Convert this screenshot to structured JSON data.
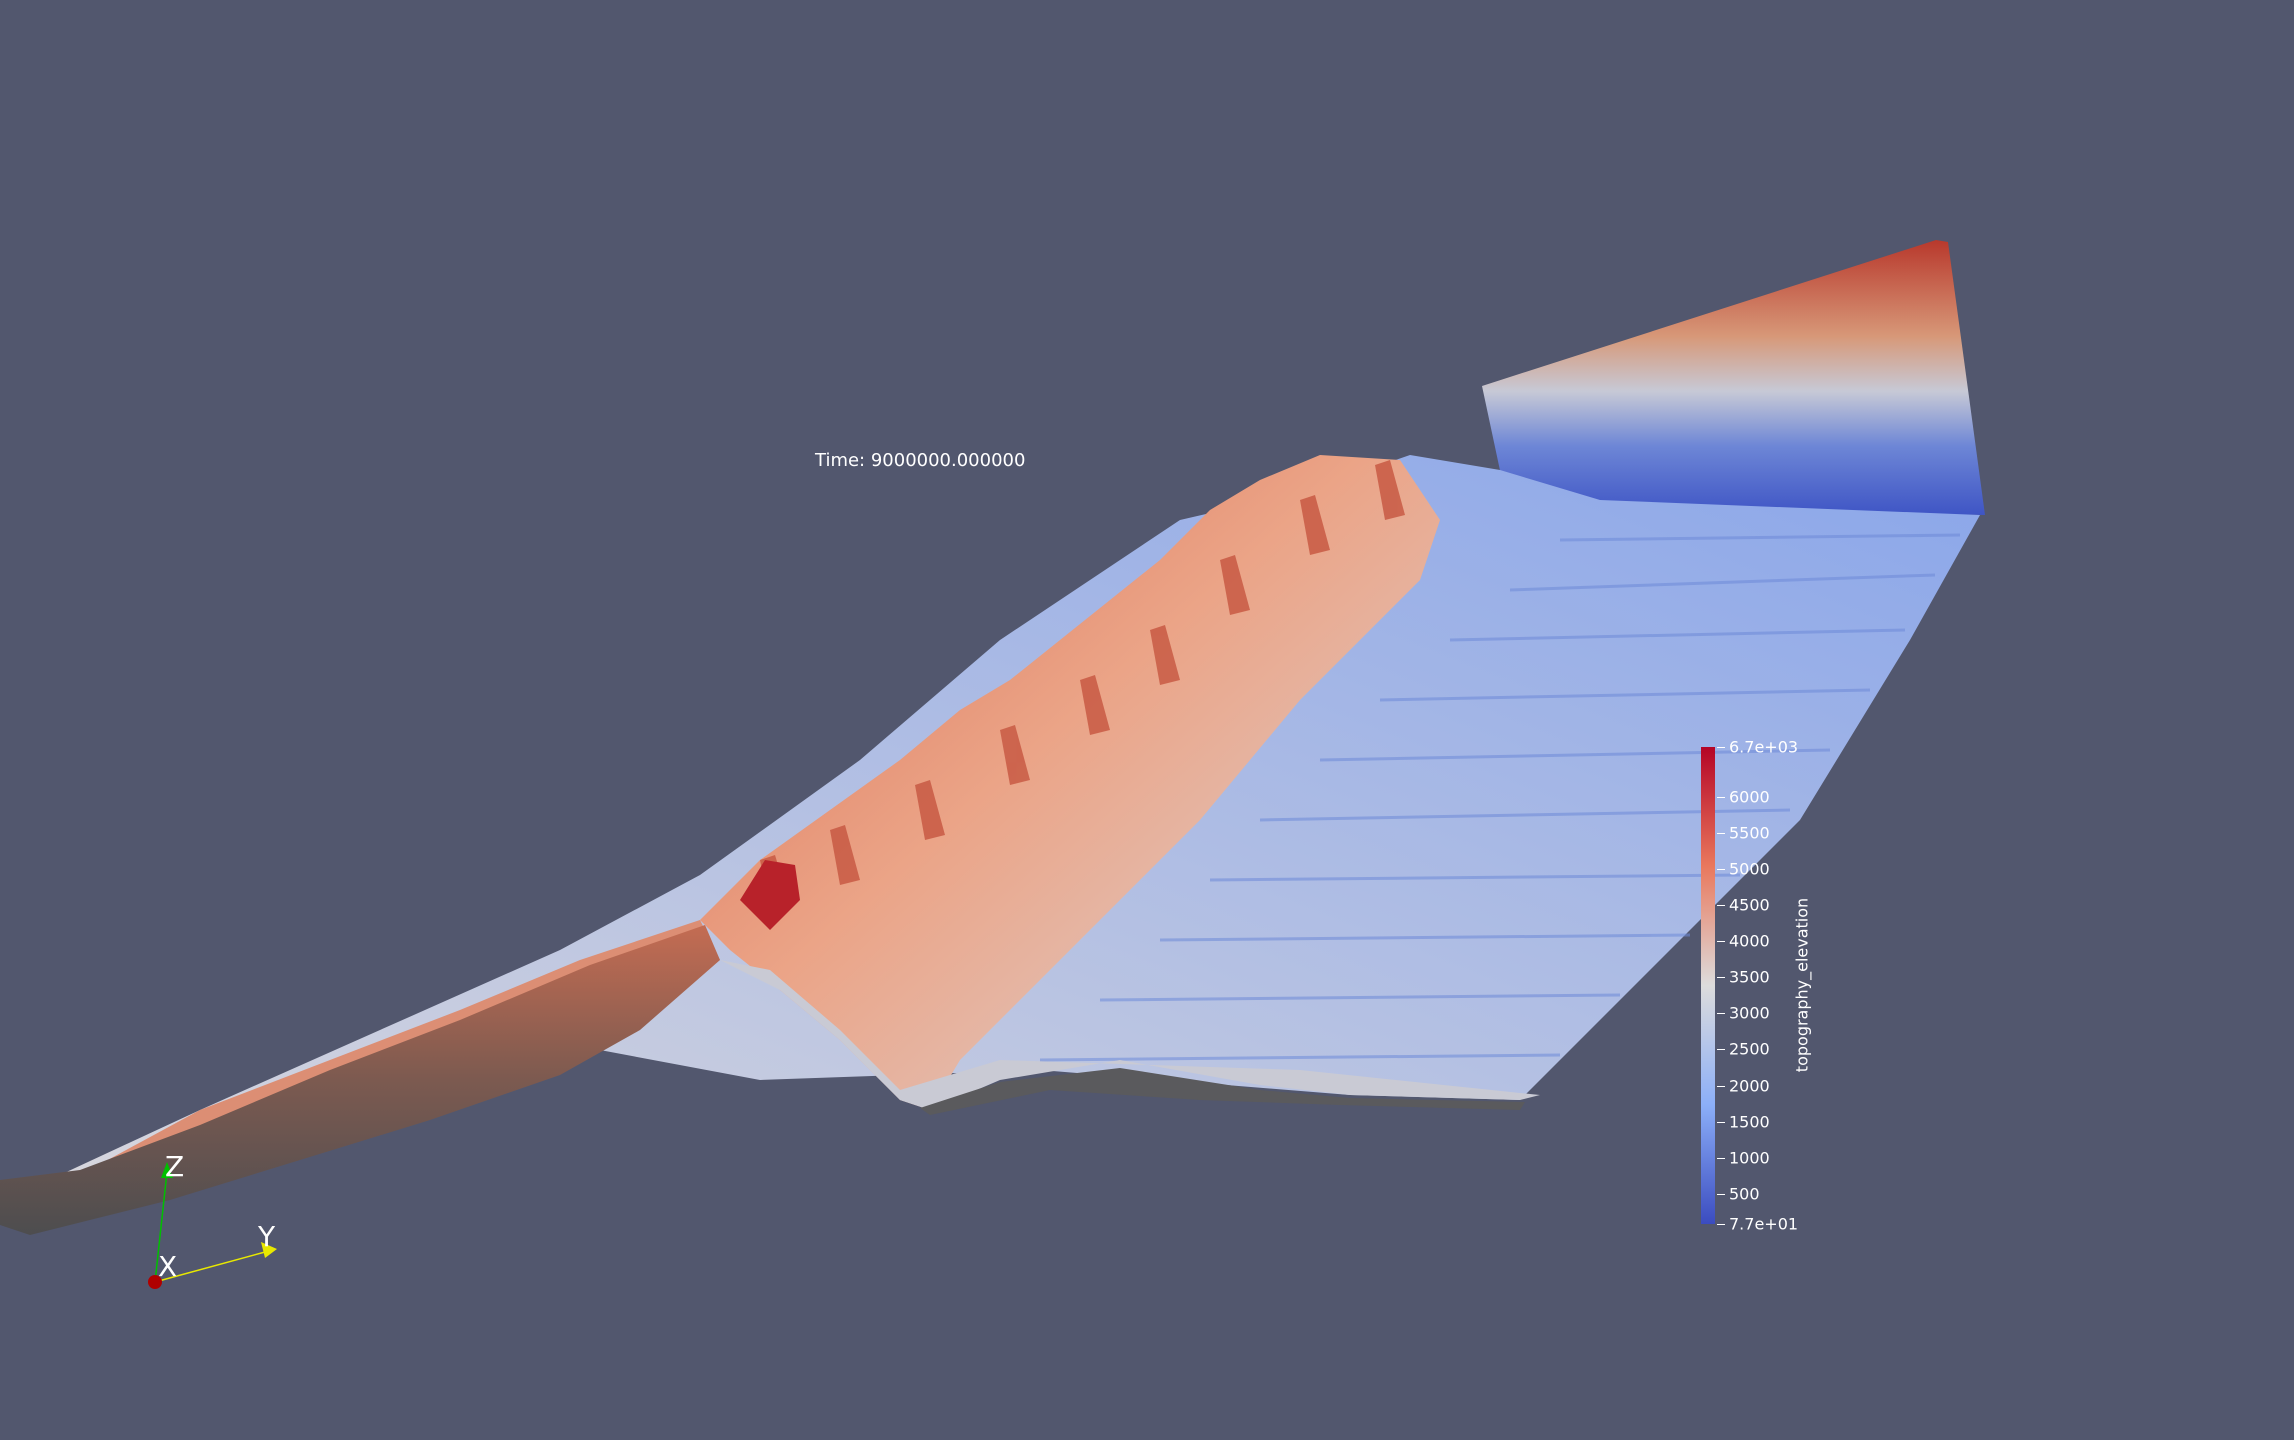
{
  "time_annotation": "Time: 9000000.000000",
  "scalar_bar": {
    "title": "topography_elevation",
    "labels": [
      {
        "text": "6.7e+03",
        "value": 6700
      },
      {
        "text": "6000",
        "value": 6000
      },
      {
        "text": "5500",
        "value": 5500
      },
      {
        "text": "5000",
        "value": 5000
      },
      {
        "text": "4500",
        "value": 4500
      },
      {
        "text": "4000",
        "value": 4000
      },
      {
        "text": "3500",
        "value": 3500
      },
      {
        "text": "3000",
        "value": 3000
      },
      {
        "text": "2500",
        "value": 2500
      },
      {
        "text": "2000",
        "value": 2000
      },
      {
        "text": "1500",
        "value": 1500
      },
      {
        "text": "1000",
        "value": 1000
      },
      {
        "text": "500",
        "value": 500
      },
      {
        "text": "7.7e+01",
        "value": 77
      }
    ],
    "range": [
      77,
      6700
    ],
    "colors": {
      "low": "#3b4cc0",
      "mid": "#dddcdc",
      "high": "#b40426"
    }
  },
  "orientation_axes": {
    "x_label": "X",
    "y_label": "Y",
    "z_label": "Z",
    "x_color": "#b00000",
    "y_color": "#e8e800",
    "z_color": "#00c000"
  },
  "background_color": "#52576e"
}
